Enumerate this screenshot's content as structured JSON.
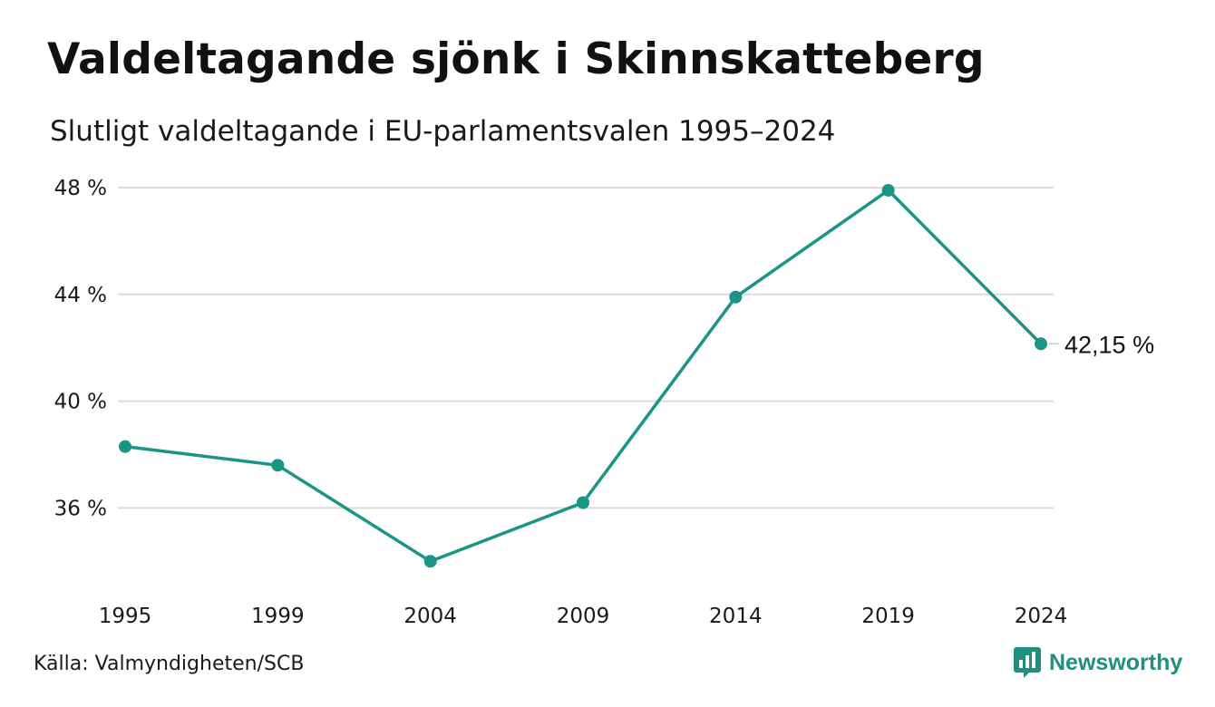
{
  "title": "Valdeltagande sjönk i Skinnskatteberg",
  "subtitle": "Slutligt valdeltagande i EU-parlamentsvalen 1995–2024",
  "source": "Källa: Valmyndigheten/SCB",
  "brand": {
    "name": "Newsworthy",
    "icon": "newsworthy-logo-icon"
  },
  "colors": {
    "line": "#1a9485",
    "grid": "#dcdcdc",
    "brand": "#1f8f7f"
  },
  "chart_data": {
    "type": "line",
    "title": "Valdeltagande sjönk i Skinnskatteberg",
    "subtitle": "Slutligt valdeltagande i EU-parlamentsvalen 1995–2024",
    "x": [
      "1995",
      "1999",
      "2004",
      "2009",
      "2014",
      "2019",
      "2024"
    ],
    "series": [
      {
        "values": [
          38.3,
          37.6,
          34.0,
          36.2,
          43.9,
          47.9,
          42.15
        ]
      }
    ],
    "ylim": [
      33.5,
      48.0
    ],
    "yticks": [
      36,
      40,
      44,
      48
    ],
    "ytick_labels": [
      "36 %",
      "40 %",
      "44 %",
      "48 %"
    ],
    "xtick_labels": [
      "1995",
      "1999",
      "2004",
      "2009",
      "2014",
      "2019",
      "2024"
    ],
    "end_label": "42,15 %",
    "grid": "horizontal",
    "legend": "none",
    "xlabel": "",
    "ylabel": ""
  }
}
